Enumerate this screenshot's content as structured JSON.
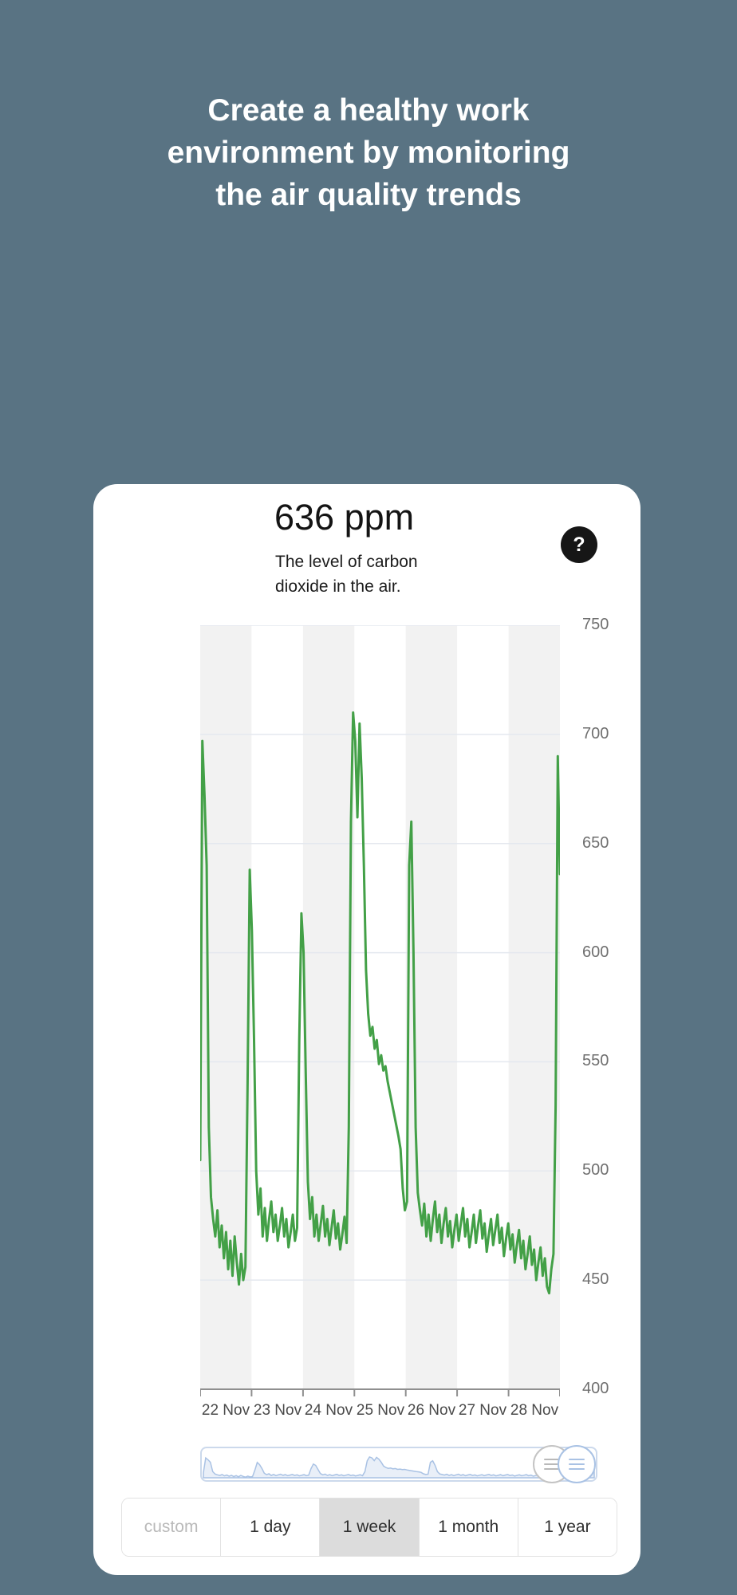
{
  "page": {
    "heading_lines": [
      "Create a healthy work",
      "environment by monitoring",
      "the air quality trends"
    ]
  },
  "card": {
    "current_value": "636 ppm",
    "description_lines": [
      "The level of carbon",
      "dioxide in the air."
    ],
    "help_label": "?"
  },
  "chart_data": {
    "type": "line",
    "title": "636 ppm",
    "subtitle": "The level of carbon dioxide in the air.",
    "unit": "ppm",
    "ylim": [
      400,
      750
    ],
    "yticks": [
      750,
      700,
      650,
      600,
      550,
      500,
      450,
      400
    ],
    "categories": [
      "22 Nov",
      "23 Nov",
      "24 Nov",
      "25 Nov",
      "26 Nov",
      "27 Nov",
      "28 Nov"
    ],
    "points_per_day": 24,
    "grid": true,
    "line_color": "#43a047",
    "stripe_color": "#f2f2f2",
    "series": [
      {
        "name": "Carbon dioxide",
        "values": [
          505,
          697,
          672,
          640,
          520,
          488,
          478,
          470,
          482,
          465,
          475,
          460,
          472,
          455,
          468,
          452,
          470,
          458,
          448,
          462,
          450,
          456,
          540,
          638,
          610,
          560,
          500,
          480,
          492,
          470,
          483,
          468,
          478,
          486,
          472,
          480,
          468,
          475,
          483,
          470,
          478,
          465,
          472,
          480,
          468,
          474,
          560,
          618,
          600,
          545,
          495,
          478,
          488,
          470,
          480,
          468,
          476,
          484,
          470,
          478,
          466,
          474,
          482,
          469,
          476,
          464,
          471,
          479,
          467,
          520,
          660,
          710,
          697,
          662,
          705,
          680,
          640,
          592,
          572,
          562,
          566,
          556,
          560,
          549,
          553,
          546,
          548,
          541,
          536,
          531,
          526,
          521,
          516,
          510,
          492,
          482,
          486,
          640,
          660,
          600,
          520,
          490,
          482,
          475,
          485,
          470,
          480,
          468,
          478,
          486,
          472,
          480,
          467,
          476,
          483,
          470,
          477,
          465,
          473,
          480,
          468,
          476,
          483,
          470,
          478,
          465,
          472,
          480,
          467,
          475,
          482,
          469,
          476,
          463,
          471,
          478,
          466,
          473,
          480,
          467,
          474,
          461,
          469,
          476,
          464,
          471,
          458,
          466,
          473,
          460,
          468,
          455,
          462,
          470,
          457,
          464,
          450,
          458,
          465,
          452,
          460,
          447,
          444,
          455,
          462,
          530,
          690,
          636
        ]
      }
    ]
  },
  "range_selector": {
    "minimap_fill": "#e9eff8",
    "minimap_stroke": "#a9c2e4"
  },
  "controls": {
    "buttons": [
      {
        "label": "custom",
        "state": "disabled"
      },
      {
        "label": "1 day",
        "state": "normal"
      },
      {
        "label": "1 week",
        "state": "selected"
      },
      {
        "label": "1 month",
        "state": "normal"
      },
      {
        "label": "1 year",
        "state": "normal"
      }
    ]
  }
}
